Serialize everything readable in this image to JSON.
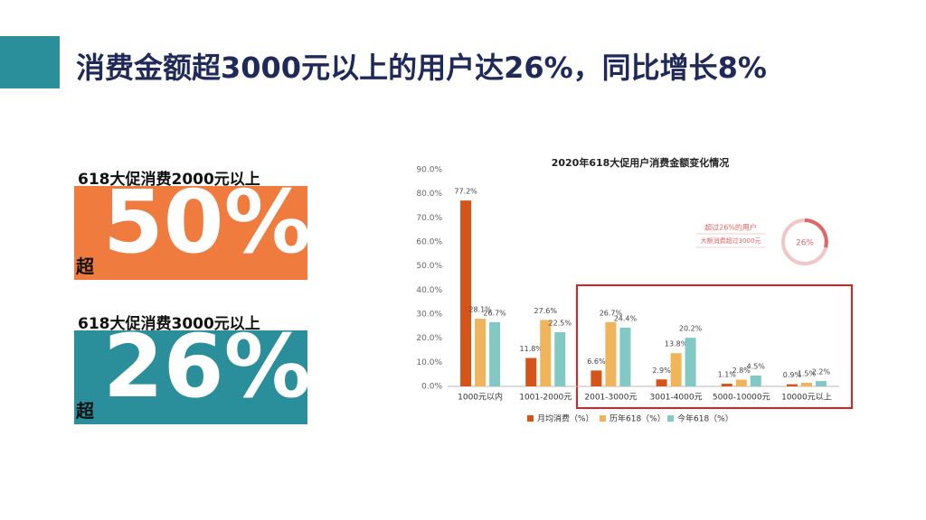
{
  "title": "消费金额超3000元以上的用户达26%，同比增长8%",
  "stats": [
    {
      "label": "618大促消费2000元以上",
      "prefix": "超",
      "value": "50%"
    },
    {
      "label": "618大促消费3000元以上",
      "prefix": "超",
      "value": "26%"
    }
  ],
  "chart_data": {
    "type": "bar",
    "title": "2020年618大促用户消费金额变化情况",
    "categories": [
      "1000元以内",
      "1001-2000元",
      "2001-3000元",
      "3001-4000元",
      "5000-10000元",
      "10000元以上"
    ],
    "series": [
      {
        "name": "月均消费（%）",
        "color": "#d4541a",
        "values": [
          77.2,
          11.8,
          6.6,
          2.9,
          1.1,
          0.9
        ],
        "value_labels": [
          "77.2%",
          "11.8%",
          "6.6%",
          "2.9%",
          "1.1%",
          "0.9%"
        ]
      },
      {
        "name": "历年618（%）",
        "color": "#f0b45a",
        "values": [
          28.1,
          27.6,
          26.7,
          13.8,
          2.8,
          1.5
        ],
        "value_labels": [
          "28.1%",
          "27.6%",
          "26.7%",
          "13.8%",
          "2.8%",
          "1.5%"
        ]
      },
      {
        "name": "今年618（%）",
        "color": "#82c9c5",
        "values": [
          26.7,
          22.5,
          24.4,
          20.2,
          4.5,
          2.2
        ],
        "value_labels": [
          "26.7%",
          "22.5%",
          "24.4%",
          "20.2%",
          "4.5%",
          "2.2%"
        ]
      }
    ],
    "ylim": [
      0,
      90
    ],
    "yticks": [
      {
        "value": 0,
        "label": "0.0%"
      },
      {
        "value": 10,
        "label": "10.0%"
      },
      {
        "value": 20,
        "label": "20.0%"
      },
      {
        "value": 30,
        "label": "30.0%"
      },
      {
        "value": 40,
        "label": "40.0%"
      },
      {
        "value": 50,
        "label": "50.0%"
      },
      {
        "value": 60,
        "label": "60.0%"
      },
      {
        "value": 70,
        "label": "70.0%"
      },
      {
        "value": 80,
        "label": "80.0%"
      },
      {
        "value": 90,
        "label": "90.0%"
      }
    ],
    "grid": false,
    "legend": "bottom",
    "annotations": [
      "超过26%的用户",
      "大额消费超过3000元",
      "26%"
    ]
  }
}
